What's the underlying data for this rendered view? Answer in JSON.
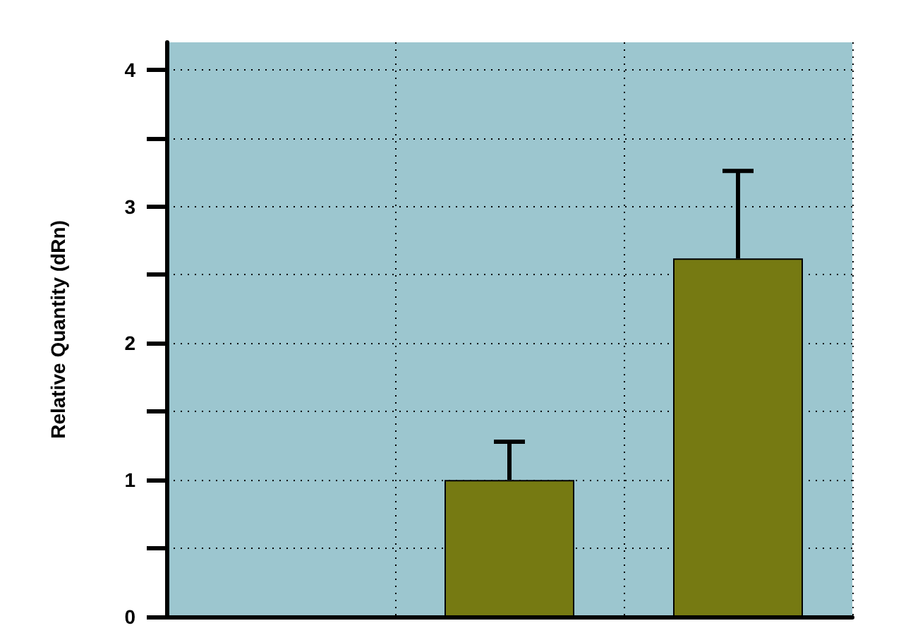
{
  "chart_data": {
    "type": "bar",
    "ylabel": "Relative Quantity (dRn)",
    "categories": [
      null,
      null,
      null
    ],
    "values": [
      null,
      1.0,
      2.62
    ],
    "errors": [
      null,
      [
        1.0,
        1.28
      ],
      [
        2.62,
        3.26
      ]
    ],
    "color": "#767a12",
    "ylim": [
      0,
      4.2
    ],
    "yticks": [
      0,
      {
        "value": 0.5,
        "label": null
      },
      1,
      {
        "value": 1.5,
        "label": null
      },
      2,
      {
        "value": 2.5,
        "label": null
      },
      3,
      {
        "value": 3.5,
        "label": null
      },
      4
    ],
    "grid": true
  }
}
